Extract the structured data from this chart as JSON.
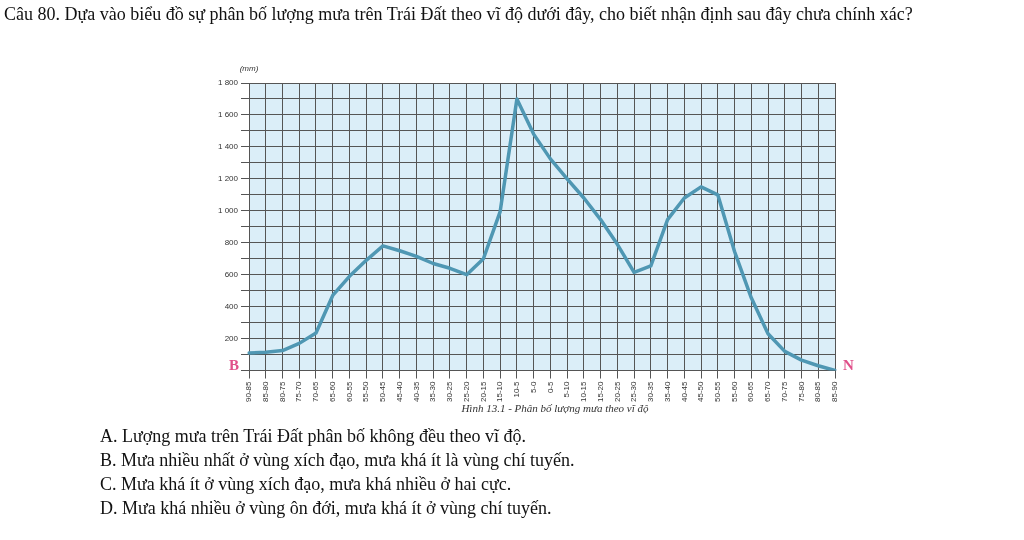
{
  "chart_data": {
    "type": "line",
    "title": "Câu 80. Dựa vào biểu đồ sự phân bố lượng mưa trên Trái Đất theo vĩ độ dưới đây, cho biết nhận định sau đây chưa chính xác?",
    "ylabel": "(mm)",
    "categories": [
      "90-85",
      "85-80",
      "80-75",
      "75-70",
      "70-65",
      "65-60",
      "60-55",
      "55-50",
      "50-45",
      "45-40",
      "40-35",
      "35-30",
      "30-25",
      "25-20",
      "20-15",
      "15-10",
      "10-5",
      "5-0",
      "0-5",
      "5-10",
      "10-15",
      "15-20",
      "20-25",
      "25-30",
      "30-35",
      "35-40",
      "40-45",
      "45-50",
      "50-55",
      "55-60",
      "60-65",
      "65-70",
      "70-75",
      "75-80",
      "80-85",
      "85-90"
    ],
    "series": [
      {
        "color": "#4f97b3",
        "values": [
          110,
          115,
          125,
          170,
          235,
          470,
          590,
          690,
          780,
          750,
          715,
          670,
          640,
          600,
          700,
          995,
          1700,
          1480,
          1325,
          1200,
          1080,
          945,
          790,
          615,
          655,
          945,
          1080,
          1150,
          1100,
          745,
          455,
          230,
          120,
          65,
          30,
          0
        ]
      }
    ],
    "ylim": [
      0,
      1800
    ],
    "yticks": [
      {
        "value": 0,
        "label": null
      },
      {
        "value": 100,
        "label": null
      },
      200,
      {
        "value": 300,
        "label": null
      },
      400,
      {
        "value": 500,
        "label": null
      },
      600,
      {
        "value": 700,
        "label": null
      },
      800,
      {
        "value": 900,
        "label": null
      },
      {
        "value": 1000,
        "label": "1 000"
      },
      {
        "value": 1100,
        "label": null
      },
      {
        "value": 1200,
        "label": "1 200"
      },
      {
        "value": 1300,
        "label": null
      },
      {
        "value": 1400,
        "label": "1 400"
      },
      {
        "value": 1500,
        "label": null
      },
      {
        "value": 1600,
        "label": "1 600"
      },
      {
        "value": 1700,
        "label": null
      },
      {
        "value": 1800,
        "label": "1 800"
      }
    ],
    "grid": true,
    "legend": false,
    "marker": "none",
    "line_style": "solid",
    "annotations": [
      "B",
      "N",
      "Hình 13.1 - Phân bố lượng mưa theo vĩ độ",
      "A. Lượng mưa trên Trái Đất phân bố không đều theo vĩ độ.",
      "B. Mưa nhiều nhất ở vùng xích đạo, mưa khá ít là vùng chí tuyến.",
      "C. Mưa khá ít ở vùng xích đạo, mưa khá nhiều ở hai cực.",
      "D. Mưa khá nhiều ở vùng ôn đới, mưa khá ít ở vùng chí tuyến."
    ]
  }
}
